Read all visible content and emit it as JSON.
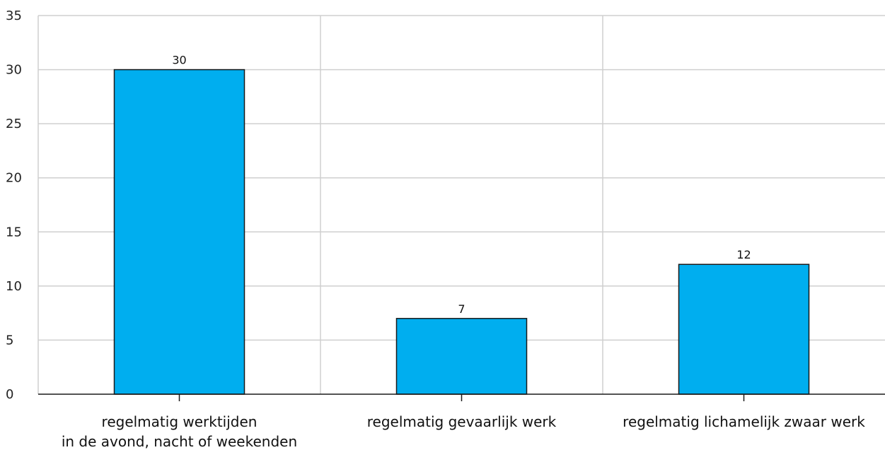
{
  "chart_data": {
    "type": "bar",
    "categories": [
      [
        "regelmatig werktijden",
        "in de avond, nacht of weekenden"
      ],
      [
        "regelmatig gevaarlijk werk"
      ],
      [
        "regelmatig lichamelijk zwaar werk"
      ]
    ],
    "values": [
      30,
      7,
      12
    ],
    "data_labels": [
      "30",
      "7",
      "12"
    ],
    "ylim": [
      0,
      35
    ],
    "yticks": [
      0,
      5,
      10,
      15,
      20,
      25,
      30,
      35
    ],
    "ytick_labels": [
      "0",
      "5",
      "10",
      "15",
      "20",
      "25",
      "30",
      "35"
    ],
    "title": "",
    "xlabel": "",
    "ylabel": "",
    "grid": true,
    "colors": {
      "bar_fill": "#00aeef",
      "bar_stroke": "#1a1a1a",
      "grid": "#cfcfcf",
      "axis": "#1a1a1a"
    }
  }
}
